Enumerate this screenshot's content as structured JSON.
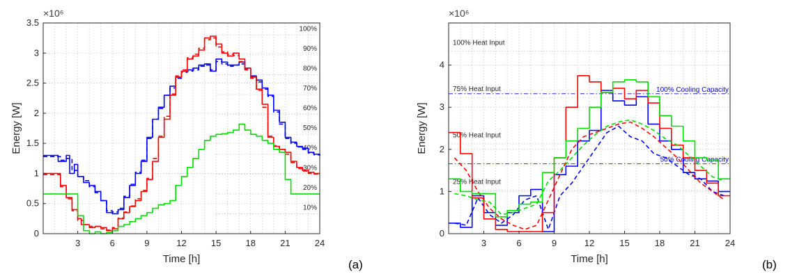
{
  "chart_data": [
    {
      "type": "line",
      "panel_label": "(a)",
      "exponent_label": "×10⁶",
      "xlabel": "Time [h]",
      "ylabel": "Energy [W]",
      "xlim": [
        0,
        24
      ],
      "ylim": [
        0,
        3.5
      ],
      "xticks": [
        3,
        6,
        9,
        12,
        15,
        18,
        21,
        24
      ],
      "yticks": [
        0,
        0.5,
        1,
        1.5,
        2,
        2.5,
        3,
        3.5
      ],
      "ytick_labels": [
        "0",
        "0.5",
        "1",
        "1.5",
        "2",
        "2.5",
        "3",
        "3.5"
      ],
      "grid": "dotted",
      "percent_markers": [
        {
          "label": "100%",
          "y": 3.3
        },
        {
          "label": "90%",
          "y": 2.97
        },
        {
          "label": "80%",
          "y": 2.64
        },
        {
          "label": "70%",
          "y": 2.31
        },
        {
          "label": "60%",
          "y": 1.98
        },
        {
          "label": "50%",
          "y": 1.65
        },
        {
          "label": "40%",
          "y": 1.32
        },
        {
          "label": "30%",
          "y": 0.99
        },
        {
          "label": "20%",
          "y": 0.66
        },
        {
          "label": "10%",
          "y": 0.33
        }
      ],
      "series": [
        {
          "color": "#0000ff",
          "style": "solid",
          "x": [
            0,
            1,
            1.3,
            2,
            2.3,
            2.7,
            3,
            3.5,
            4,
            4.5,
            5,
            5.5,
            6,
            6.5,
            7,
            7.5,
            8,
            8.5,
            9,
            9.5,
            10,
            10.5,
            11,
            11.5,
            12,
            12.5,
            13,
            13.5,
            14,
            14.5,
            15,
            15.5,
            16,
            16.5,
            17,
            17.5,
            18,
            18.5,
            19,
            19.5,
            20,
            20.5,
            21,
            21.5,
            22,
            22.5,
            23,
            23.5,
            24
          ],
          "y": [
            1.3,
            1.3,
            1.2,
            1.3,
            1.0,
            1.15,
            0.95,
            0.85,
            0.8,
            0.7,
            0.55,
            0.35,
            0.33,
            0.4,
            0.6,
            0.8,
            1.0,
            1.2,
            1.6,
            1.9,
            2.1,
            2.3,
            2.45,
            2.6,
            2.7,
            2.72,
            2.75,
            2.8,
            2.82,
            2.7,
            2.9,
            2.85,
            2.8,
            2.8,
            2.85,
            2.75,
            2.62,
            2.55,
            2.42,
            2.3,
            2.05,
            1.85,
            1.6,
            1.52,
            1.45,
            1.42,
            1.35,
            1.32,
            1.3
          ]
        },
        {
          "color": "#0000ff",
          "style": "dashed",
          "x": [
            0,
            1,
            1.5,
            2,
            2.5,
            3,
            3.5,
            4,
            4.5,
            5,
            5.5,
            6,
            6.5,
            7,
            7.5,
            8,
            8.5,
            9,
            9.5,
            10,
            10.5,
            11,
            11.5,
            12,
            12.5,
            13,
            13.5,
            14,
            14.5,
            15,
            15.5,
            16,
            16.5,
            17,
            17.5,
            18,
            18.5,
            19,
            19.5,
            20,
            20.5,
            21,
            21.5,
            22,
            22.5,
            23,
            23.5,
            24
          ],
          "y": [
            1.28,
            1.28,
            1.22,
            1.25,
            1.05,
            0.95,
            0.88,
            0.78,
            0.68,
            0.55,
            0.38,
            0.36,
            0.42,
            0.62,
            0.82,
            1.02,
            1.22,
            1.58,
            1.9,
            2.08,
            2.3,
            2.42,
            2.58,
            2.68,
            2.7,
            2.72,
            2.78,
            2.8,
            2.72,
            2.86,
            2.82,
            2.78,
            2.8,
            2.82,
            2.74,
            2.6,
            2.52,
            2.4,
            2.28,
            2.02,
            1.82,
            1.58,
            1.5,
            1.44,
            1.4,
            1.34,
            1.31,
            1.29
          ]
        },
        {
          "color": "#ff0000",
          "style": "solid",
          "x": [
            0,
            1,
            1.5,
            2,
            2.5,
            3,
            3.3,
            4,
            4.5,
            5,
            5.5,
            6,
            6.5,
            7,
            7.5,
            8,
            8.5,
            9,
            9.5,
            10,
            10.5,
            11,
            11.5,
            12,
            12.5,
            13,
            13.5,
            14,
            14.5,
            15,
            15.5,
            16,
            16.5,
            17,
            17.5,
            18,
            18.5,
            19,
            19.5,
            20,
            20.5,
            21,
            21.5,
            22,
            22.5,
            23,
            23.5,
            24
          ],
          "y": [
            1.0,
            1.0,
            0.8,
            0.6,
            0.4,
            0.25,
            0.15,
            0.1,
            0.12,
            0.1,
            0.05,
            0.08,
            0.25,
            0.35,
            0.45,
            0.55,
            0.7,
            0.9,
            1.2,
            1.6,
            1.9,
            2.3,
            2.6,
            2.7,
            2.9,
            2.95,
            3.05,
            3.25,
            3.28,
            3.15,
            3.0,
            2.95,
            3.0,
            2.9,
            2.75,
            2.6,
            2.4,
            2.15,
            1.6,
            1.45,
            1.4,
            1.35,
            1.2,
            1.1,
            1.05,
            1.02,
            1.0,
            1.0
          ]
        },
        {
          "color": "#ff0000",
          "style": "dashed",
          "x": [
            0,
            1,
            1.5,
            2,
            2.5,
            3,
            3.5,
            4,
            4.5,
            5,
            5.5,
            6,
            6.5,
            7,
            7.5,
            8,
            8.5,
            9,
            9.5,
            10,
            10.5,
            11,
            11.5,
            12,
            12.5,
            13,
            13.5,
            14,
            14.5,
            15,
            15.5,
            16,
            16.5,
            17,
            17.5,
            18,
            18.5,
            19,
            19.5,
            20,
            20.5,
            21,
            21.5,
            22,
            22.5,
            23,
            23.5,
            24
          ],
          "y": [
            0.98,
            0.98,
            0.78,
            0.58,
            0.38,
            0.22,
            0.15,
            0.12,
            0.12,
            0.08,
            0.06,
            0.1,
            0.26,
            0.36,
            0.46,
            0.58,
            0.72,
            0.92,
            1.25,
            1.62,
            1.95,
            2.32,
            2.62,
            2.72,
            2.92,
            2.98,
            3.08,
            3.22,
            3.25,
            3.1,
            3.02,
            2.98,
            2.96,
            2.86,
            2.72,
            2.58,
            2.38,
            2.1,
            1.62,
            1.46,
            1.4,
            1.32,
            1.18,
            1.08,
            1.04,
            1.0,
            0.99,
            0.98
          ]
        },
        {
          "color": "#00dd00",
          "style": "solid",
          "x": [
            0,
            1,
            1.5,
            2,
            2.5,
            3,
            3.5,
            4,
            4.5,
            5,
            5.5,
            6,
            6.5,
            7,
            7.5,
            8,
            8.5,
            9,
            9.5,
            10,
            10.5,
            11,
            11.5,
            12,
            12.5,
            13,
            13.5,
            14,
            14.5,
            15,
            15.5,
            16,
            16.5,
            17,
            17.5,
            18,
            18.5,
            19,
            19.5,
            20,
            20.5,
            21,
            21.5,
            22,
            22.5,
            23,
            23.5,
            24
          ],
          "y": [
            0.66,
            0.66,
            0.66,
            0.66,
            0.66,
            0.3,
            0.05,
            0.0,
            0.03,
            0.0,
            0.02,
            0.05,
            0.12,
            0.15,
            0.2,
            0.25,
            0.3,
            0.35,
            0.42,
            0.48,
            0.5,
            0.55,
            0.8,
            0.95,
            1.1,
            1.25,
            1.4,
            1.55,
            1.62,
            1.65,
            1.66,
            1.68,
            1.72,
            1.82,
            1.72,
            1.65,
            1.62,
            1.55,
            1.5,
            1.4,
            1.35,
            0.9,
            0.66,
            0.66,
            0.66,
            0.66,
            0.66,
            0.66
          ]
        }
      ]
    },
    {
      "type": "line",
      "panel_label": "(b)",
      "exponent_label": "×10⁶",
      "xlabel": "Time [h]",
      "ylabel": "Energy [W]",
      "xlim": [
        0,
        24
      ],
      "ylim": [
        0,
        5
      ],
      "xticks": [
        3,
        6,
        9,
        12,
        15,
        18,
        21,
        24
      ],
      "yticks": [
        0,
        1,
        2,
        3,
        4
      ],
      "ytick_labels": [
        "0",
        "1",
        "2",
        "3",
        "4"
      ],
      "grid": "dotted",
      "heat_input_labels": [
        {
          "label": "100% Heat Input",
          "y": 4.55
        },
        {
          "label": "75% Heat Input",
          "y": 3.45
        },
        {
          "label": "50% Heat Input",
          "y": 2.35
        },
        {
          "label": "25% Heat Input",
          "y": 1.25
        }
      ],
      "cooling_capacity_lines": [
        {
          "label": "100% Cooling Capacity",
          "y": 3.32
        },
        {
          "label": "50% Cooling Capacity",
          "y": 1.66
        }
      ],
      "series": [
        {
          "color": "#0000ff",
          "style": "solid",
          "x": [
            0,
            1,
            2,
            3,
            4,
            5,
            6,
            7,
            8,
            9,
            10,
            11,
            12,
            13,
            14,
            15,
            16,
            17,
            18,
            19,
            20,
            21,
            22,
            23,
            24
          ],
          "y": [
            0.25,
            0.15,
            0.9,
            0.5,
            0.2,
            0.5,
            0.9,
            1.05,
            0.05,
            1.4,
            1.6,
            2.2,
            2.45,
            3.4,
            3.15,
            3.05,
            3.25,
            2.6,
            2.2,
            2.0,
            1.45,
            1.3,
            1.25,
            1.0,
            1.0
          ]
        },
        {
          "color": "#0000ff",
          "style": "dashed",
          "x": [
            0,
            1,
            2,
            3,
            4,
            5,
            6,
            7,
            8,
            9,
            10,
            11,
            12,
            13,
            14,
            15,
            16,
            17,
            18,
            19,
            20,
            21,
            22,
            23,
            24
          ],
          "y": [
            0.25,
            0.2,
            0.85,
            0.45,
            0.25,
            0.45,
            0.8,
            0.9,
            0.1,
            0.9,
            1.2,
            1.6,
            2.0,
            2.4,
            2.55,
            2.3,
            2.2,
            1.9,
            1.8,
            1.6,
            1.4,
            1.3,
            1.0,
            0.9,
            0.9
          ]
        },
        {
          "color": "#ff0000",
          "style": "solid",
          "x": [
            0,
            1,
            2,
            3,
            4,
            5,
            6,
            7,
            8,
            9,
            10,
            11,
            12,
            13,
            14,
            15,
            16,
            17,
            18,
            19,
            20,
            21,
            22,
            23,
            24
          ],
          "y": [
            2.4,
            1.9,
            0.85,
            0.35,
            0.1,
            0.05,
            0.05,
            0.05,
            0.5,
            1.8,
            3.0,
            3.75,
            3.6,
            3.35,
            3.45,
            3.2,
            3.4,
            3.1,
            2.5,
            2.1,
            1.8,
            1.5,
            1.2,
            0.9,
            0.85
          ]
        },
        {
          "color": "#ff0000",
          "style": "dashed",
          "x": [
            0,
            1,
            2,
            3,
            4,
            5,
            6,
            7,
            8,
            9,
            10,
            11,
            12,
            13,
            14,
            15,
            16,
            17,
            18,
            19,
            20,
            21,
            22,
            23,
            24
          ],
          "y": [
            1.8,
            1.5,
            1.0,
            0.6,
            0.35,
            0.2,
            0.1,
            0.2,
            0.8,
            1.4,
            2.0,
            2.3,
            2.4,
            2.5,
            2.6,
            2.65,
            2.5,
            2.3,
            2.05,
            1.8,
            1.5,
            1.2,
            1.0,
            0.8,
            0.7
          ]
        },
        {
          "color": "#00dd00",
          "style": "solid",
          "x": [
            0,
            1,
            2,
            3,
            4,
            5,
            6,
            7,
            8,
            9,
            10,
            11,
            12,
            13,
            14,
            15,
            16,
            17,
            18,
            19,
            20,
            21,
            22,
            23,
            24
          ],
          "y": [
            1.3,
            1.0,
            0.95,
            0.95,
            0.4,
            0.55,
            0.7,
            0.75,
            1.45,
            1.8,
            2.2,
            2.5,
            3.0,
            3.35,
            3.6,
            3.65,
            3.6,
            3.25,
            2.8,
            2.55,
            2.2,
            1.8,
            1.75,
            1.3,
            1.3
          ]
        },
        {
          "color": "#00dd00",
          "style": "dashed",
          "x": [
            0,
            1,
            2,
            3,
            4,
            5,
            6,
            7,
            8,
            9,
            10,
            11,
            12,
            13,
            14,
            15,
            16,
            17,
            18,
            19,
            20,
            21,
            22,
            23,
            24
          ],
          "y": [
            0.95,
            0.9,
            0.8,
            0.75,
            0.45,
            0.5,
            0.6,
            0.7,
            1.25,
            1.5,
            1.8,
            2.1,
            2.35,
            2.55,
            2.65,
            2.7,
            2.6,
            2.45,
            2.25,
            2.1,
            1.85,
            1.6,
            1.35,
            1.25,
            1.2
          ]
        }
      ]
    }
  ]
}
